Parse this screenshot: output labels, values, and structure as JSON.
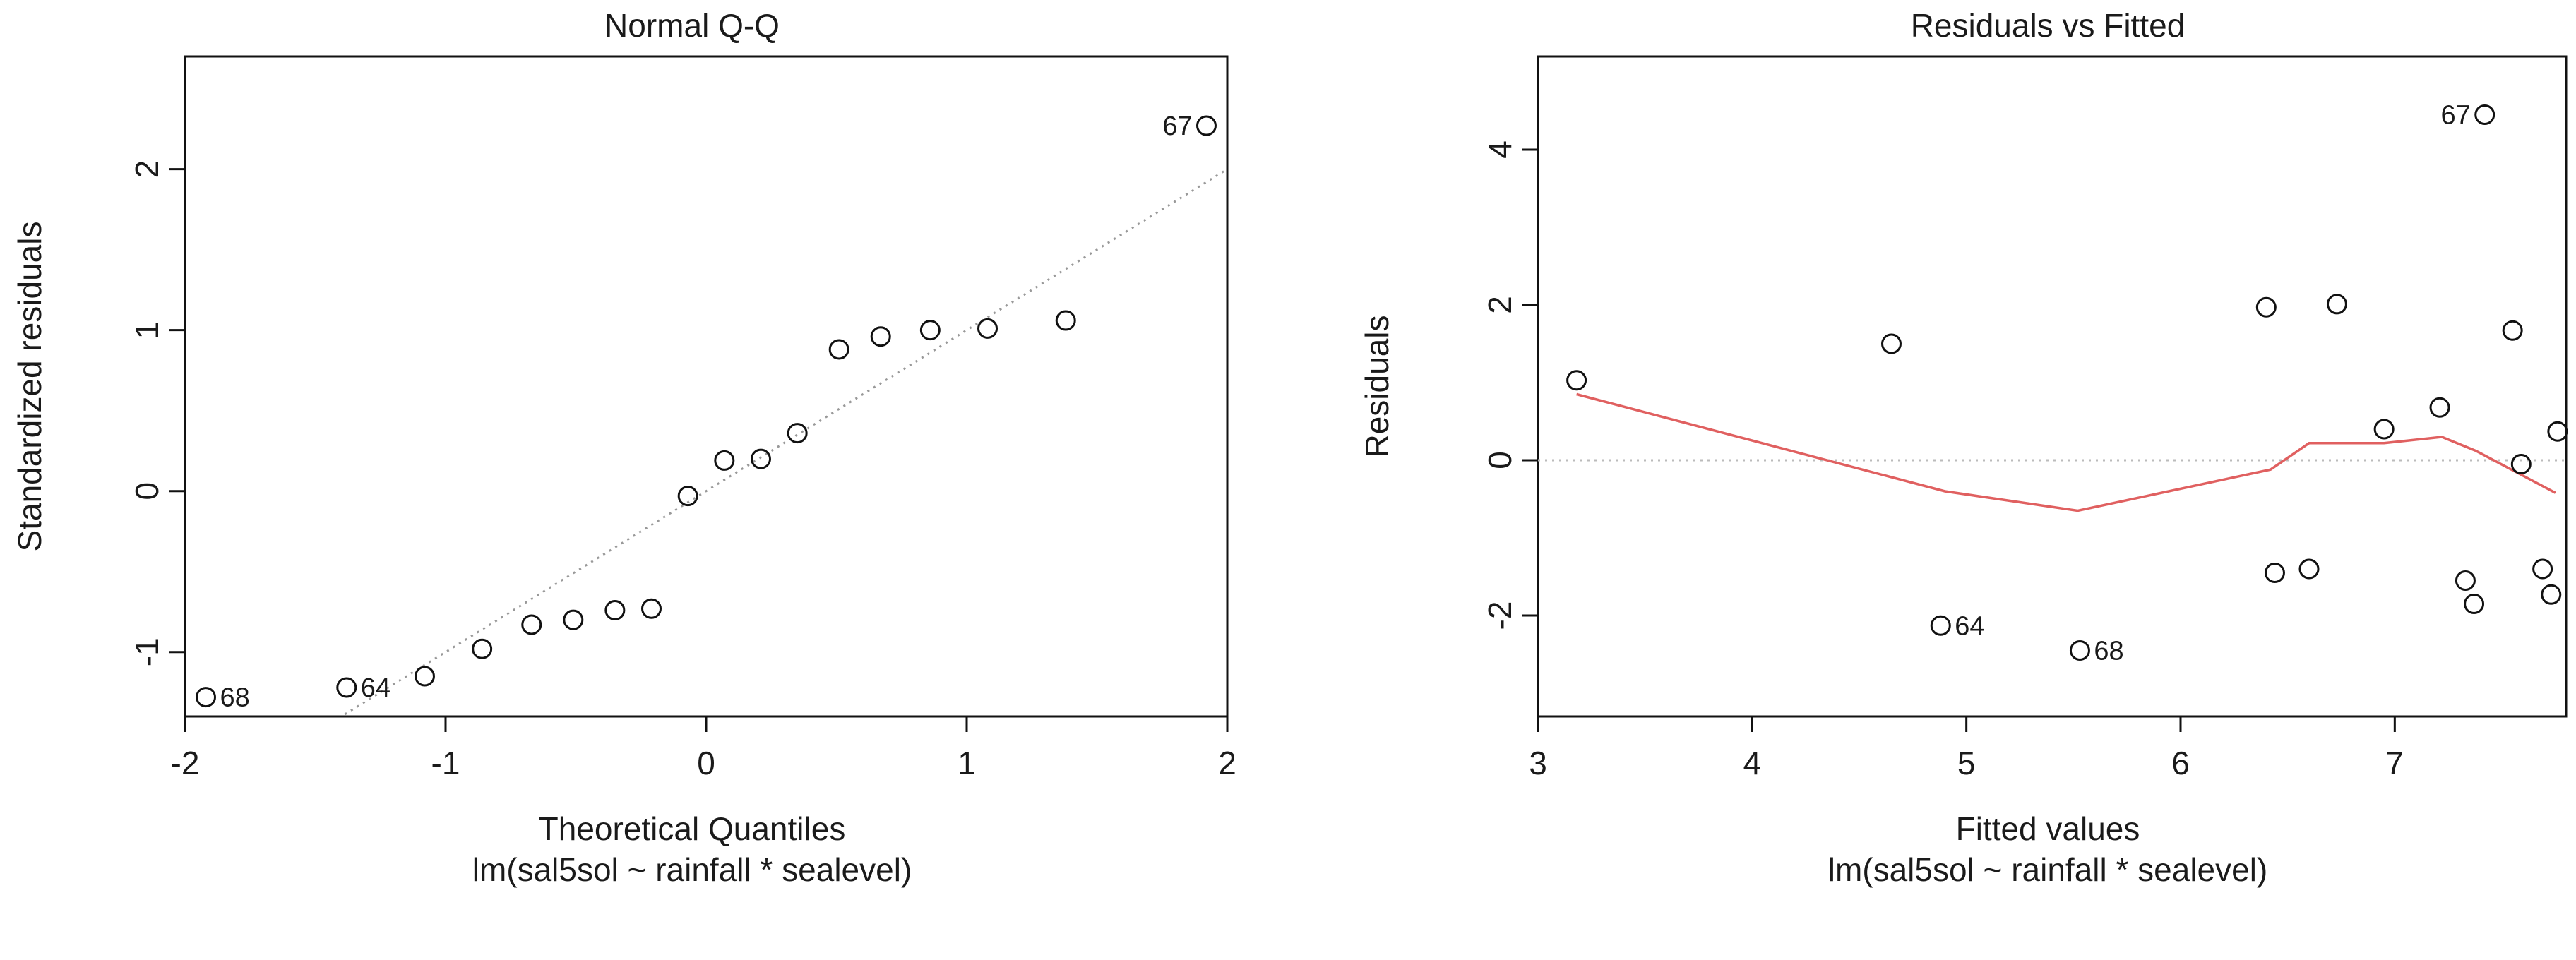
{
  "chart_data": [
    {
      "type": "scatter",
      "title": "Normal Q-Q",
      "xlabel": "Theoretical Quantiles",
      "subtitle": "lm(sal5sol ~ rainfall * sealevel)",
      "ylabel": "Standardized residuals",
      "xlim": [
        -2.0,
        2.0
      ],
      "ylim": [
        -1.4,
        2.7
      ],
      "xticks": [
        -2,
        -1,
        0,
        1,
        2
      ],
      "yticks": [
        -1,
        0,
        1,
        2
      ],
      "reference_line": {
        "slope": 1.0,
        "intercept": 0.0,
        "style": "dotted",
        "color": "#999999"
      },
      "points": [
        {
          "x": -1.92,
          "y": -1.28,
          "label": "68"
        },
        {
          "x": -1.38,
          "y": -1.22,
          "label": "64"
        },
        {
          "x": -1.08,
          "y": -1.15
        },
        {
          "x": -0.86,
          "y": -0.98
        },
        {
          "x": -0.67,
          "y": -0.83
        },
        {
          "x": -0.51,
          "y": -0.8
        },
        {
          "x": -0.35,
          "y": -0.74
        },
        {
          "x": -0.21,
          "y": -0.73
        },
        {
          "x": -0.07,
          "y": -0.03
        },
        {
          "x": 0.07,
          "y": 0.19
        },
        {
          "x": 0.21,
          "y": 0.2
        },
        {
          "x": 0.35,
          "y": 0.36
        },
        {
          "x": 0.51,
          "y": 0.88
        },
        {
          "x": 0.67,
          "y": 0.96
        },
        {
          "x": 0.86,
          "y": 1.0
        },
        {
          "x": 1.08,
          "y": 1.01
        },
        {
          "x": 1.38,
          "y": 1.06
        },
        {
          "x": 1.92,
          "y": 2.27,
          "label": "67"
        }
      ]
    },
    {
      "type": "scatter",
      "title": "Residuals vs Fitted",
      "xlabel": "Fitted values",
      "subtitle": "lm(sal5sol ~ rainfall * sealevel)",
      "ylabel": "Residuals",
      "xlim": [
        3.0,
        7.8
      ],
      "ylim": [
        -3.3,
        5.2
      ],
      "xticks": [
        3,
        4,
        5,
        6,
        7
      ],
      "yticks": [
        -2,
        0,
        2,
        4
      ],
      "zero_line": {
        "y": 0,
        "style": "dotted",
        "color": "#bbbbbb"
      },
      "smoother": {
        "color": "#e06060",
        "points": [
          [
            3.18,
            0.85
          ],
          [
            4.9,
            -0.4
          ],
          [
            5.52,
            -0.65
          ],
          [
            6.42,
            -0.12
          ],
          [
            6.6,
            0.22
          ],
          [
            6.95,
            0.22
          ],
          [
            7.22,
            0.3
          ],
          [
            7.38,
            0.12
          ],
          [
            7.75,
            -0.42
          ]
        ]
      },
      "points": [
        {
          "x": 3.18,
          "y": 1.03
        },
        {
          "x": 4.65,
          "y": 1.5
        },
        {
          "x": 4.88,
          "y": -2.13,
          "label": "64"
        },
        {
          "x": 5.53,
          "y": -2.45,
          "label": "68"
        },
        {
          "x": 6.4,
          "y": 1.97
        },
        {
          "x": 6.44,
          "y": -1.45
        },
        {
          "x": 6.6,
          "y": -1.4
        },
        {
          "x": 6.73,
          "y": 2.01
        },
        {
          "x": 6.95,
          "y": 0.4
        },
        {
          "x": 7.21,
          "y": 0.68
        },
        {
          "x": 7.33,
          "y": -1.55
        },
        {
          "x": 7.37,
          "y": -1.85
        },
        {
          "x": 7.42,
          "y": 4.45,
          "label": "67"
        },
        {
          "x": 7.55,
          "y": 1.67
        },
        {
          "x": 7.59,
          "y": -0.05
        },
        {
          "x": 7.69,
          "y": -1.4
        },
        {
          "x": 7.73,
          "y": -1.73
        },
        {
          "x": 7.76,
          "y": 0.37
        }
      ]
    }
  ]
}
